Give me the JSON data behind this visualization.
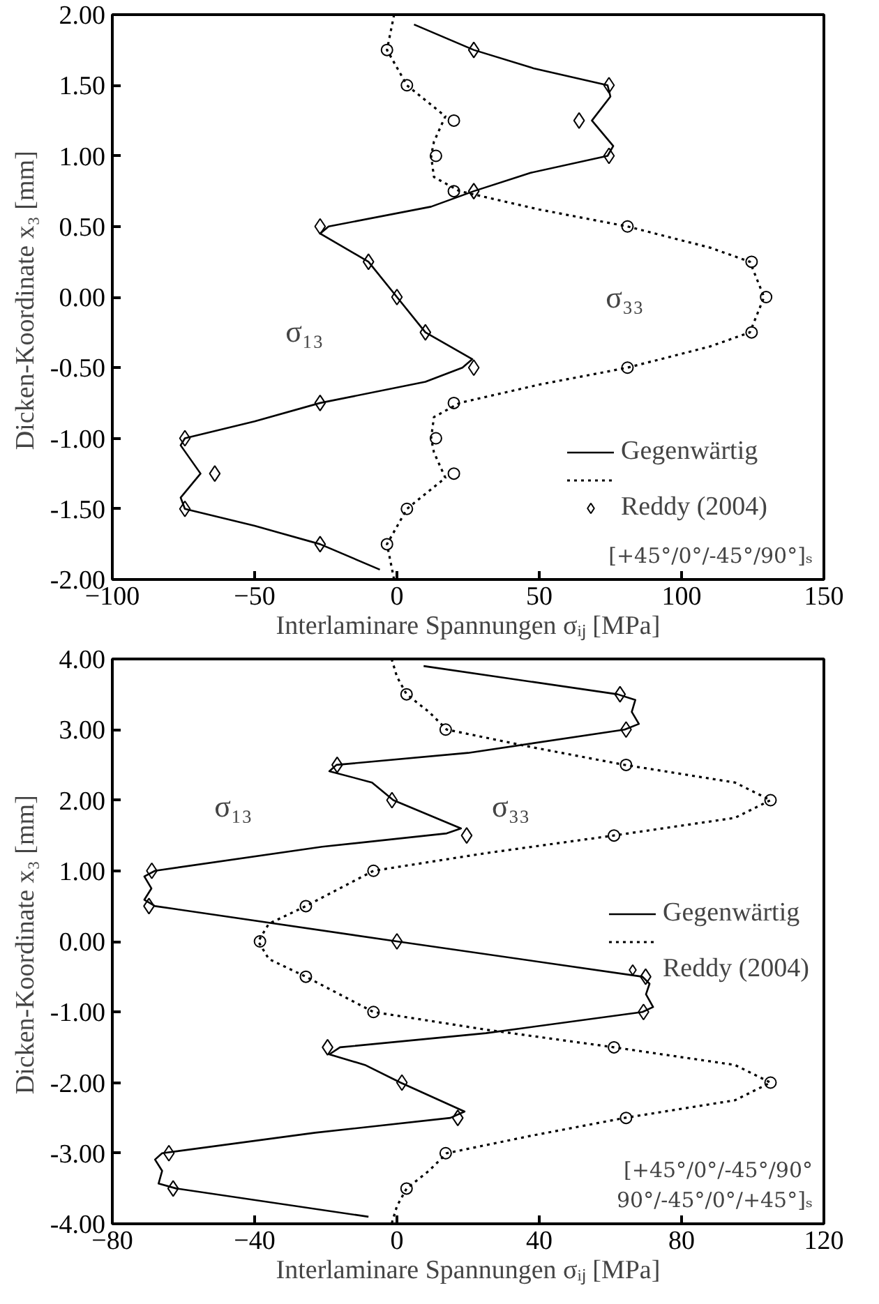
{
  "chart_data": [
    {
      "type": "line",
      "xlabel": "Interlaminare Spannungen σᵢⱼ [MPa]",
      "ylabel": "Dicken-Koordinate  x₃ [mm]",
      "xlim": [
        -100,
        150
      ],
      "xticks": [
        -100,
        -50,
        0,
        50,
        100,
        150
      ],
      "ylim": [
        -2,
        2
      ],
      "yticks": [
        {
          "value": -2,
          "label": "-2.00"
        },
        {
          "value": -1.5,
          "label": "-1.50"
        },
        {
          "value": -1,
          "label": "-1.00"
        },
        {
          "value": -0.5,
          "label": "-0.50"
        },
        {
          "value": 0,
          "label": "0.00"
        },
        {
          "value": 0.5,
          "label": "0.50"
        },
        {
          "value": 1,
          "label": "1.00"
        },
        {
          "value": 1.5,
          "label": "1.50"
        },
        {
          "value": 2,
          "label": "2.00"
        }
      ],
      "grid": false,
      "legend": "bottom right",
      "series": [
        {
          "name": "Gegenwärtig",
          "line_style": "solid",
          "color": "#000000",
          "x": [
            6,
            27,
            48,
            74,
            75,
            68.5,
            76,
            74,
            47,
            27,
            12,
            -24,
            -27,
            -10,
            0,
            10,
            26.5,
            23,
            10,
            -27,
            -50,
            -74.5,
            -76,
            -69,
            -76,
            -74.5,
            -50,
            -27,
            -6
          ],
          "values": [
            1.93,
            1.75,
            1.62,
            1.5,
            1.42,
            1.25,
            1.07,
            1.0,
            0.88,
            0.75,
            0.64,
            0.5,
            0.45,
            0.25,
            0,
            -0.25,
            -0.44,
            -0.5,
            -0.6,
            -0.75,
            -0.88,
            -1.0,
            -1.05,
            -1.25,
            -1.42,
            -1.5,
            -1.62,
            -1.75,
            -1.93
          ]
        },
        {
          "line_style": "dotted",
          "color": "#000000",
          "x": [
            -1,
            -3.5,
            3.5,
            17,
            13,
            12,
            13,
            22,
            50,
            81,
            110,
            124,
            129,
            124,
            110,
            81,
            50,
            22,
            13,
            12,
            13,
            17,
            3.5,
            -3.5,
            -1
          ],
          "values": [
            2.0,
            1.75,
            1.5,
            1.28,
            1.1,
            1.0,
            0.85,
            0.75,
            0.62,
            0.5,
            0.35,
            0.25,
            0,
            -0.25,
            -0.35,
            -0.5,
            -0.62,
            -0.75,
            -0.85,
            -1.0,
            -1.1,
            -1.28,
            -1.5,
            -1.75,
            -2.0
          ]
        },
        {
          "name": "Reddy (2004)",
          "type": "scatter",
          "marker": "diamond",
          "color": "#000000",
          "x": [
            27,
            74.5,
            64,
            74.5,
            27,
            -27,
            -10,
            0,
            10,
            27,
            -27,
            -74.5,
            -64,
            -74.5,
            -27
          ],
          "values": [
            1.75,
            1.5,
            1.25,
            1.0,
            0.75,
            0.5,
            0.25,
            0,
            -0.25,
            -0.5,
            -0.75,
            -1.0,
            -1.25,
            -1.5,
            -1.75
          ]
        },
        {
          "type": "scatter",
          "marker": "circle",
          "color": "#000000",
          "x": [
            -3.5,
            3.5,
            20,
            13.7,
            20,
            81,
            124.6,
            129.7,
            124.6,
            81,
            20,
            13.7,
            20,
            3.5,
            -3.5
          ],
          "values": [
            1.75,
            1.5,
            1.25,
            1.0,
            0.75,
            0.5,
            0.25,
            0,
            -0.25,
            -0.5,
            -0.75,
            -1.0,
            -1.25,
            -1.5,
            -1.75
          ]
        }
      ],
      "annotations": [
        "σ₁₃",
        "σ₃₃",
        "[+45°/0°/-45°/90°]ₛ"
      ]
    },
    {
      "type": "line",
      "xlabel": "Interlaminare Spannungen σᵢⱼ [MPa]",
      "ylabel": "Dicken-Koordinate  x₃ [mm]",
      "xlim": [
        -80,
        120
      ],
      "xticks": [
        -80,
        -40,
        0,
        40,
        80,
        120
      ],
      "ylim": [
        -4,
        4
      ],
      "yticks": [
        {
          "value": -4,
          "label": "-4.00"
        },
        {
          "value": -3,
          "label": "-3.00"
        },
        {
          "value": -2,
          "label": "-2.00"
        },
        {
          "value": -1,
          "label": "-1.00"
        },
        {
          "value": 0,
          "label": "0.00"
        },
        {
          "value": 1,
          "label": "1.00"
        },
        {
          "value": 2,
          "label": "2.00"
        },
        {
          "value": 3,
          "label": "3.00"
        },
        {
          "value": 4,
          "label": "4.00"
        }
      ],
      "grid": false,
      "legend": "right",
      "series": [
        {
          "name": "Gegenwärtig",
          "line_style": "solid",
          "color": "#000000",
          "x": [
            7.5,
            62,
            67,
            66,
            68,
            64,
            20,
            -17,
            -19,
            -7,
            -1,
            18,
            14,
            -21,
            -68,
            -71,
            -69,
            -71,
            -68,
            0,
            69,
            71,
            70,
            72,
            69,
            25,
            -16,
            -19,
            -9,
            1,
            19,
            15,
            -23,
            -66,
            -68,
            -66,
            -67,
            -62,
            -8
          ],
          "values": [
            3.9,
            3.5,
            3.42,
            3.25,
            3.08,
            3.0,
            2.67,
            2.5,
            2.41,
            2.25,
            2.0,
            1.6,
            1.53,
            1.34,
            1.0,
            0.92,
            0.75,
            0.59,
            0.5,
            0,
            -0.5,
            -0.6,
            -0.75,
            -0.93,
            -1.0,
            -1.3,
            -1.5,
            -1.6,
            -1.75,
            -2.0,
            -2.41,
            -2.5,
            -2.71,
            -3.0,
            -3.09,
            -3.25,
            -3.43,
            -3.5,
            -3.9
          ]
        },
        {
          "line_style": "dotted",
          "color": "#000000",
          "x": [
            -1.5,
            0,
            2.7,
            9,
            14,
            38,
            64,
            95,
            105,
            95,
            61,
            25,
            -6.6,
            -25.6,
            -36,
            -39,
            -36,
            -25.6,
            -6.6,
            25,
            61,
            95,
            105,
            95,
            64,
            38,
            14,
            9,
            2.7,
            0,
            -1.5
          ],
          "values": [
            4.0,
            3.75,
            3.5,
            3.25,
            3.0,
            2.75,
            2.5,
            2.25,
            2.0,
            1.75,
            1.5,
            1.25,
            1.0,
            0.5,
            0.25,
            0,
            -0.25,
            -0.5,
            -1.0,
            -1.25,
            -1.5,
            -1.75,
            -2.0,
            -2.25,
            -2.5,
            -2.75,
            -3.0,
            -3.25,
            -3.5,
            -3.75,
            -4.0
          ]
        },
        {
          "name": "Reddy (2004)",
          "type": "scatter",
          "marker": "diamond",
          "color": "#000000",
          "x": [
            62.7,
            64.4,
            -16.8,
            -1.4,
            19.6,
            -68.9,
            -69.7,
            0,
            69.9,
            69.3,
            -19.5,
            1.4,
            17.1,
            -64.1,
            -62.9
          ],
          "values": [
            3.5,
            3.0,
            2.5,
            2.0,
            1.5,
            1.0,
            0.5,
            0,
            -0.5,
            -1.0,
            -1.5,
            -2.0,
            -2.5,
            -3.0,
            -3.5
          ]
        },
        {
          "type": "scatter",
          "marker": "circle",
          "color": "#000000",
          "x": [
            2.7,
            13.7,
            64.4,
            105,
            61,
            -6.6,
            -25.6,
            -38.5,
            -25.6,
            -6.6,
            61,
            105,
            64.4,
            13.7,
            2.7
          ],
          "values": [
            3.5,
            3.0,
            2.5,
            2.0,
            1.5,
            1.0,
            0.5,
            0,
            -0.5,
            -1.0,
            -1.5,
            -2.0,
            -2.5,
            -3.0,
            -3.5
          ]
        }
      ],
      "annotations": [
        "σ₁₃",
        "σ₃₃",
        "[+45°/0°/-45°/90°\n90°/-45°/0°/+45°]ₛ"
      ]
    }
  ]
}
